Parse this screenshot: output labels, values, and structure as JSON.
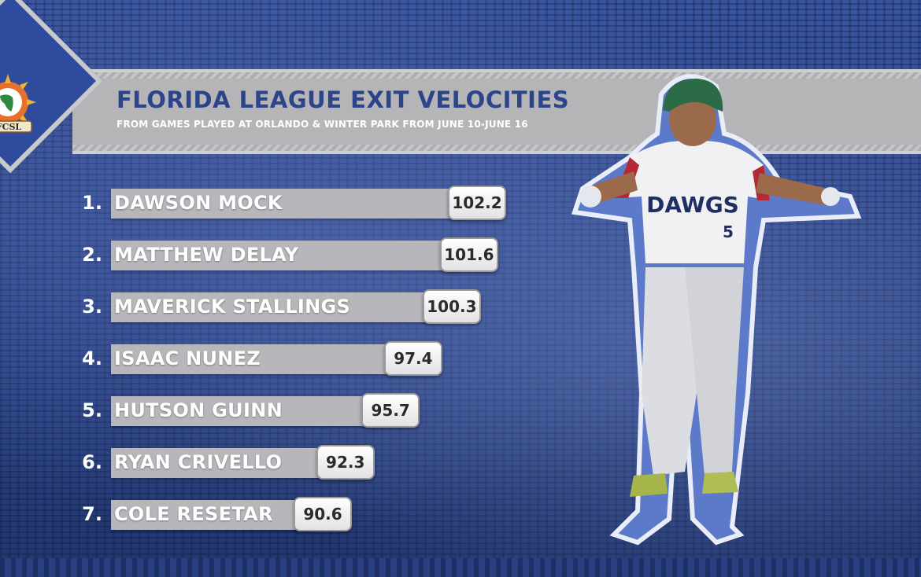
{
  "header": {
    "title": "FLORIDA LEAGUE EXIT VELOCITIES",
    "subtitle": "FROM GAMES PLAYED AT ORLANDO & WINTER PARK FROM JUNE 10-JUNE 16"
  },
  "logo": {
    "text": "FCSL"
  },
  "player": {
    "jersey_text": "DAWGS",
    "number": "5"
  },
  "colors": {
    "brand_blue": "#2c4489",
    "band_gray": "#b5b5b8",
    "text_white": "#ffffff"
  },
  "chart_data": {
    "type": "bar",
    "orientation": "horizontal",
    "title": "FLORIDA LEAGUE EXIT VELOCITIES",
    "subtitle": "FROM GAMES PLAYED AT ORLANDO & WINTER PARK FROM JUNE 10-JUNE 16",
    "ranks": [
      "1.",
      "2.",
      "3.",
      "4.",
      "5.",
      "6.",
      "7."
    ],
    "categories": [
      "DAWSON MOCK",
      "MATTHEW DELAY",
      "MAVERICK STALLINGS",
      "ISAAC NUNEZ",
      "HUTSON GUINN",
      "RYAN CRIVELLO",
      "COLE RESETAR"
    ],
    "values": [
      102.2,
      101.6,
      100.3,
      97.4,
      95.7,
      92.3,
      90.6
    ],
    "value_labels": [
      "102.2",
      "101.6",
      "100.3",
      "97.4",
      "95.7",
      "92.3",
      "90.6"
    ],
    "grid": false,
    "legend": "none"
  }
}
